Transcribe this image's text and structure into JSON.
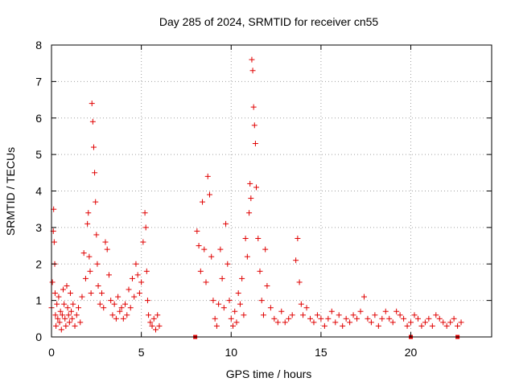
{
  "chart_data": {
    "type": "scatter",
    "title": "Day 285 of 2024, SRMTID for receiver cn55",
    "xlabel": "GPS time / hours",
    "ylabel": "SRMTID / TECUs",
    "xlim": [
      0,
      24.5
    ],
    "ylim": [
      0,
      8
    ],
    "xticks": [
      0,
      5,
      10,
      15,
      20
    ],
    "yticks": [
      0,
      1,
      2,
      3,
      4,
      5,
      6,
      7,
      8
    ],
    "xtick_labels": [
      "0",
      "5",
      "10",
      "15",
      "20"
    ],
    "ytick_labels": [
      "0",
      "1",
      "2",
      "3",
      "4",
      "5",
      "6",
      "7",
      "8"
    ],
    "grid": true,
    "marker": "plus",
    "color": "#e00000",
    "series": [
      {
        "name": "SRMTID",
        "x": [
          0.0,
          0.05,
          0.1,
          0.12,
          0.15,
          0.18,
          0.2,
          0.22,
          0.25,
          0.3,
          0.35,
          0.4,
          0.45,
          0.5,
          0.55,
          0.6,
          0.65,
          0.7,
          0.75,
          0.8,
          0.85,
          0.9,
          0.95,
          1.0,
          1.05,
          1.1,
          1.15,
          1.2,
          1.3,
          1.4,
          1.5,
          1.6,
          1.7,
          1.8,
          1.9,
          2.0,
          2.05,
          2.1,
          2.15,
          2.2,
          2.25,
          2.3,
          2.35,
          2.4,
          2.45,
          2.5,
          2.55,
          2.6,
          2.7,
          2.8,
          2.9,
          3.0,
          3.1,
          3.2,
          3.3,
          3.4,
          3.5,
          3.6,
          3.7,
          3.8,
          3.9,
          4.0,
          4.1,
          4.2,
          4.3,
          4.4,
          4.5,
          4.6,
          4.7,
          4.8,
          4.9,
          5.0,
          5.1,
          5.2,
          5.25,
          5.3,
          5.35,
          5.4,
          5.5,
          5.6,
          5.7,
          5.8,
          5.9,
          6.0,
          8.1,
          8.2,
          8.3,
          8.4,
          8.5,
          8.6,
          8.7,
          8.8,
          8.9,
          9.0,
          9.1,
          9.2,
          9.3,
          9.4,
          9.5,
          9.6,
          9.7,
          9.8,
          9.9,
          10.0,
          10.1,
          10.2,
          10.3,
          10.4,
          10.5,
          10.6,
          10.7,
          10.8,
          10.9,
          11.0,
          11.05,
          11.1,
          11.15,
          11.2,
          11.25,
          11.3,
          11.35,
          11.4,
          11.5,
          11.6,
          11.7,
          11.8,
          11.9,
          12.0,
          12.2,
          12.4,
          12.6,
          12.8,
          13.0,
          13.2,
          13.4,
          13.6,
          13.7,
          13.8,
          13.9,
          14.0,
          14.2,
          14.4,
          14.6,
          14.8,
          15.0,
          15.2,
          15.4,
          15.6,
          15.8,
          16.0,
          16.2,
          16.4,
          16.6,
          16.8,
          17.0,
          17.2,
          17.4,
          17.6,
          17.8,
          18.0,
          18.2,
          18.4,
          18.6,
          18.8,
          19.0,
          19.2,
          19.4,
          19.6,
          19.8,
          20.0,
          20.2,
          20.4,
          20.6,
          20.8,
          21.0,
          21.2,
          21.4,
          21.6,
          21.8,
          22.0,
          22.2,
          22.4,
          22.6,
          22.8
        ],
        "y": [
          0.8,
          1.5,
          2.9,
          3.5,
          2.6,
          2.0,
          1.2,
          0.6,
          0.3,
          0.9,
          0.5,
          1.1,
          0.4,
          0.7,
          0.2,
          0.6,
          1.3,
          0.9,
          0.5,
          0.3,
          1.4,
          0.8,
          0.6,
          0.4,
          1.2,
          0.7,
          0.5,
          0.9,
          0.3,
          0.6,
          0.8,
          0.4,
          1.1,
          2.3,
          1.6,
          3.1,
          3.4,
          2.2,
          1.8,
          1.2,
          6.4,
          5.9,
          5.2,
          4.5,
          3.7,
          2.8,
          2.0,
          1.4,
          0.9,
          1.2,
          0.8,
          2.6,
          2.4,
          1.7,
          1.0,
          0.6,
          0.9,
          0.5,
          1.1,
          0.7,
          0.8,
          0.5,
          0.9,
          0.6,
          1.3,
          0.8,
          1.6,
          1.1,
          2.0,
          1.7,
          1.2,
          1.5,
          2.6,
          3.4,
          3.0,
          1.8,
          1.0,
          0.6,
          0.4,
          0.3,
          0.5,
          0.2,
          0.6,
          0.3,
          2.9,
          2.5,
          1.8,
          3.7,
          2.4,
          1.5,
          4.4,
          3.9,
          2.2,
          1.0,
          0.5,
          0.3,
          0.9,
          2.4,
          1.6,
          0.8,
          3.1,
          2.0,
          1.0,
          0.5,
          0.3,
          0.7,
          0.4,
          1.2,
          0.9,
          1.6,
          0.6,
          2.7,
          2.2,
          3.4,
          4.2,
          3.8,
          7.6,
          7.3,
          6.3,
          5.8,
          5.3,
          4.1,
          2.7,
          1.8,
          1.0,
          0.6,
          2.4,
          1.4,
          0.8,
          0.5,
          0.4,
          0.7,
          0.4,
          0.5,
          0.6,
          2.1,
          2.7,
          1.5,
          0.9,
          0.6,
          0.8,
          0.5,
          0.4,
          0.6,
          0.5,
          0.3,
          0.5,
          0.7,
          0.4,
          0.6,
          0.3,
          0.5,
          0.4,
          0.6,
          0.5,
          0.7,
          1.1,
          0.5,
          0.4,
          0.6,
          0.3,
          0.5,
          0.7,
          0.5,
          0.4,
          0.7,
          0.6,
          0.5,
          0.3,
          0.4,
          0.6,
          0.5,
          0.3,
          0.4,
          0.5,
          0.3,
          0.6,
          0.5,
          0.4,
          0.3,
          0.4,
          0.5,
          0.3,
          0.4
        ]
      }
    ],
    "gap_markers_x": [
      8.0,
      20.0,
      22.6
    ]
  }
}
